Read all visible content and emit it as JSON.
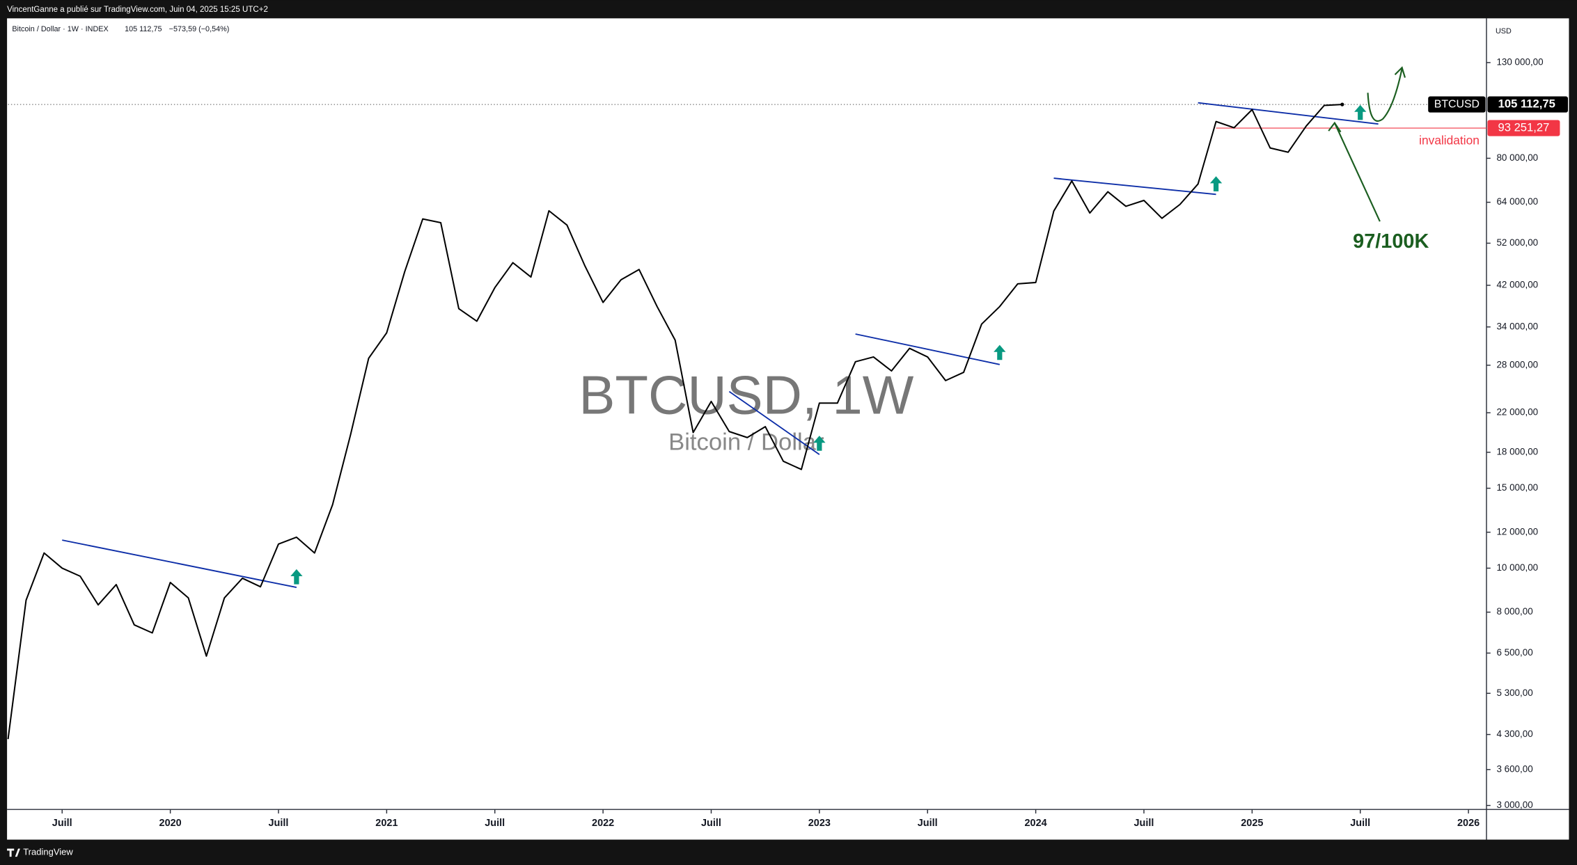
{
  "header": {
    "publisher": "VincentGanne a publié sur TradingView.com, Juin 04, 2025 15:25 UTC+2",
    "legend_name": "Bitcoin / Dollar · 1W · INDEX",
    "legend_price": "105 112,75",
    "legend_change": "−573,59 (−0,54%)",
    "brand": "TradingView"
  },
  "chart_data": {
    "type": "line",
    "title": "BTCUSD, 1W",
    "subtitle": "Bitcoin / Dollar",
    "y_unit": "USD",
    "log_scale": true,
    "color": "#000000",
    "x": [
      "2019-04",
      "2019-05",
      "2019-06",
      "2019-07",
      "2019-08",
      "2019-09",
      "2019-10",
      "2019-11",
      "2019-12",
      "2020-01",
      "2020-02",
      "2020-03",
      "2020-04",
      "2020-05",
      "2020-06",
      "2020-07",
      "2020-08",
      "2020-09",
      "2020-10",
      "2020-11",
      "2020-12",
      "2021-01",
      "2021-02",
      "2021-03",
      "2021-04",
      "2021-05",
      "2021-06",
      "2021-07",
      "2021-08",
      "2021-09",
      "2021-10",
      "2021-11",
      "2021-12",
      "2022-01",
      "2022-02",
      "2022-03",
      "2022-04",
      "2022-05",
      "2022-06",
      "2022-07",
      "2022-08",
      "2022-09",
      "2022-10",
      "2022-11",
      "2022-12",
      "2023-01",
      "2023-02",
      "2023-03",
      "2023-04",
      "2023-05",
      "2023-06",
      "2023-07",
      "2023-08",
      "2023-09",
      "2023-10",
      "2023-11",
      "2023-12",
      "2024-01",
      "2024-02",
      "2024-03",
      "2024-04",
      "2024-05",
      "2024-06",
      "2024-07",
      "2024-08",
      "2024-09",
      "2024-10",
      "2024-11",
      "2024-12",
      "2025-01",
      "2025-02",
      "2025-03",
      "2025-04",
      "2025-05",
      "2025-06"
    ],
    "values": [
      4200,
      8500,
      10800,
      10000,
      9600,
      8300,
      9200,
      7500,
      7200,
      9300,
      8600,
      6400,
      8600,
      9500,
      9100,
      11300,
      11700,
      10800,
      13800,
      19700,
      29000,
      33000,
      45000,
      58800,
      57700,
      37300,
      35000,
      41500,
      47100,
      43800,
      61300,
      57000,
      46300,
      38500,
      43200,
      45500,
      37700,
      31800,
      19900,
      23300,
      20000,
      19400,
      20500,
      17200,
      16500,
      23100,
      23100,
      28500,
      29200,
      27200,
      30500,
      29200,
      25900,
      27000,
      34500,
      37700,
      42300,
      42600,
      61200,
      71300,
      60600,
      67500,
      62700,
      64600,
      59000,
      63300,
      70200,
      96400,
      93400,
      102400,
      84300,
      82500,
      94200,
      104600,
      105112.75
    ],
    "xlim": [
      "2019-04",
      "2026-02"
    ],
    "xticks": [
      {
        "value": "2019-07",
        "label": "Juill"
      },
      {
        "value": "2020-01",
        "label": "2020"
      },
      {
        "value": "2020-07",
        "label": "Juill"
      },
      {
        "value": "2021-01",
        "label": "2021"
      },
      {
        "value": "2021-07",
        "label": "Juill"
      },
      {
        "value": "2022-01",
        "label": "2022"
      },
      {
        "value": "2022-07",
        "label": "Juill"
      },
      {
        "value": "2023-01",
        "label": "2023"
      },
      {
        "value": "2023-07",
        "label": "Juill"
      },
      {
        "value": "2024-01",
        "label": "2024"
      },
      {
        "value": "2024-07",
        "label": "Juill"
      },
      {
        "value": "2025-01",
        "label": "2025"
      },
      {
        "value": "2025-07",
        "label": "Juill"
      },
      {
        "value": "2026-01",
        "label": "2026"
      }
    ],
    "ylim": [
      2940,
      162700
    ],
    "yticks": [
      {
        "value": 130000,
        "label": "130 000,00"
      },
      {
        "value": 80000,
        "label": "80 000,00"
      },
      {
        "value": 64000,
        "label": "64 000,00"
      },
      {
        "value": 52000,
        "label": "52 000,00"
      },
      {
        "value": 42000,
        "label": "42 000,00"
      },
      {
        "value": 34000,
        "label": "34 000,00"
      },
      {
        "value": 28000,
        "label": "28 000,00"
      },
      {
        "value": 22000,
        "label": "22 000,00"
      },
      {
        "value": 18000,
        "label": "18 000,00"
      },
      {
        "value": 15000,
        "label": "15 000,00"
      },
      {
        "value": 12000,
        "label": "12 000,00"
      },
      {
        "value": 10000,
        "label": "10 000,00"
      },
      {
        "value": 8000,
        "label": "8 000,00"
      },
      {
        "value": 6500,
        "label": "6 500,00"
      },
      {
        "value": 5300,
        "label": "5 300,00"
      },
      {
        "value": 4300,
        "label": "4 300,00"
      },
      {
        "value": 3600,
        "label": "3 600,00"
      },
      {
        "value": 3000,
        "label": "3 000,00"
      }
    ],
    "symbol": "BTCUSD",
    "last_price": {
      "value": 105112.75,
      "label": "105 112,75"
    },
    "invalidation": {
      "value": 93251.27,
      "label": "93 251,27",
      "text": "invalidation",
      "x": "2024-11",
      "color": "#f23645"
    },
    "trendline_color": "#0d2ea8",
    "trendlines": [
      {
        "x": [
          "2019-07",
          "2020-08"
        ],
        "values": [
          11530,
          9070
        ]
      },
      {
        "x": [
          "2022-08",
          "2023-01"
        ],
        "values": [
          24500,
          17800
        ]
      },
      {
        "x": [
          "2023-03",
          "2023-11"
        ],
        "values": [
          32800,
          28100
        ]
      },
      {
        "x": [
          "2024-02",
          "2024-11"
        ],
        "values": [
          72300,
          66600
        ]
      },
      {
        "x": [
          "2024-10",
          "2025-08"
        ],
        "values": [
          106000,
          95200
        ]
      }
    ],
    "signal_color": "#089981",
    "signals": {
      "x": [
        "2020-08",
        "2023-01",
        "2023-11",
        "2024-11",
        "2025-07"
      ],
      "values": [
        9550,
        18800,
        29800,
        70100,
        100700
      ]
    },
    "target_label": "97/100K"
  }
}
